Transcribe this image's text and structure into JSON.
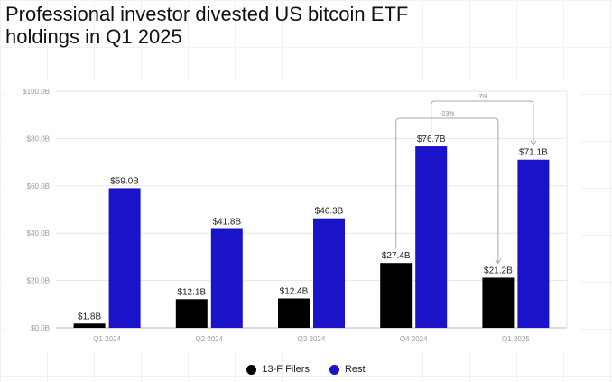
{
  "title": "Professional investor divested US bitcoin ETF holdings in Q1 2025",
  "colors": {
    "filers": "#000000",
    "rest": "#1a13c9"
  },
  "chart_data": {
    "type": "bar",
    "title": "Professional investor divested US bitcoin ETF holdings in Q1 2025",
    "categories": [
      "Q1 2024",
      "Q2 2024",
      "Q3 2024",
      "Q4 2024",
      "Q1 2025"
    ],
    "series": [
      {
        "name": "13-F Filers",
        "values": [
          1.8,
          12.1,
          12.4,
          27.4,
          21.2
        ],
        "labels": [
          "$1.8B",
          "$12.1B",
          "$12.4B",
          "$27.4B",
          "$21.2B"
        ]
      },
      {
        "name": "Rest",
        "values": [
          59.0,
          41.8,
          46.3,
          76.7,
          71.1
        ],
        "labels": [
          "$59.0B",
          "$41.8B",
          "$46.3B",
          "$76.7B",
          "$71.1B"
        ]
      }
    ],
    "ylim": [
      0,
      100
    ],
    "yticks": [
      "$0.0B",
      "$20.0B",
      "$40.0B",
      "$60.0B",
      "$80.0B",
      "$100.0B"
    ],
    "ytick_values": [
      0,
      20,
      40,
      60,
      80,
      100
    ],
    "xlabel": "",
    "ylabel": "",
    "grid": true,
    "legend": "bottom-center",
    "annotations": [
      {
        "text": "-23%",
        "from": "Q4 2024 13-F Filers",
        "to": "Q1 2025 13-F Filers"
      },
      {
        "text": "-7%",
        "from": "Q4 2024 Rest",
        "to": "Q1 2025 Rest"
      }
    ]
  }
}
